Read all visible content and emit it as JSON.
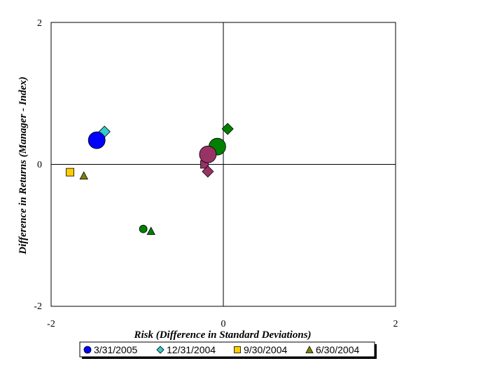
{
  "chart_data": {
    "type": "scatter",
    "title": "",
    "xlabel": "Risk (Difference in Standard Deviations)",
    "ylabel": "Difference in Returns (Manager - Index)",
    "xlim": [
      -2,
      2
    ],
    "ylim": [
      -2,
      2
    ],
    "xticks": [
      "-2",
      "0",
      "2"
    ],
    "yticks": [
      "2",
      "0",
      "-2"
    ],
    "grid": false,
    "legend_position": "bottom",
    "series": [
      {
        "name": "3/31/2005",
        "marker": "circle",
        "legend_color": "#0000ff",
        "points": [
          {
            "x": -1.47,
            "y": 0.34,
            "color": "#0000ff",
            "size": "large"
          },
          {
            "x": -0.07,
            "y": 0.25,
            "color": "#008000",
            "size": "large"
          },
          {
            "x": -0.18,
            "y": 0.14,
            "color": "#993366",
            "size": "large"
          },
          {
            "x": -0.93,
            "y": -0.91,
            "color": "#008000",
            "size": "small"
          }
        ]
      },
      {
        "name": "12/31/2004",
        "marker": "diamond",
        "legend_color": "#33cccc",
        "points": [
          {
            "x": -1.38,
            "y": 0.46,
            "color": "#33cccc"
          },
          {
            "x": 0.05,
            "y": 0.5,
            "color": "#008000"
          },
          {
            "x": -0.18,
            "y": -0.1,
            "color": "#993366"
          }
        ]
      },
      {
        "name": "9/30/2004",
        "marker": "square",
        "legend_color": "#ffcc00",
        "points": [
          {
            "x": -1.78,
            "y": -0.11,
            "color": "#ffcc00"
          },
          {
            "x": -0.22,
            "y": 0.0,
            "color": "#993366"
          }
        ]
      },
      {
        "name": "6/30/2004",
        "marker": "triangle",
        "legend_color": "#808000",
        "points": [
          {
            "x": -1.62,
            "y": -0.16,
            "color": "#808000"
          },
          {
            "x": -0.84,
            "y": -0.94,
            "color": "#008000"
          },
          {
            "x": -0.22,
            "y": 0.08,
            "color": "#993366"
          }
        ]
      }
    ]
  }
}
